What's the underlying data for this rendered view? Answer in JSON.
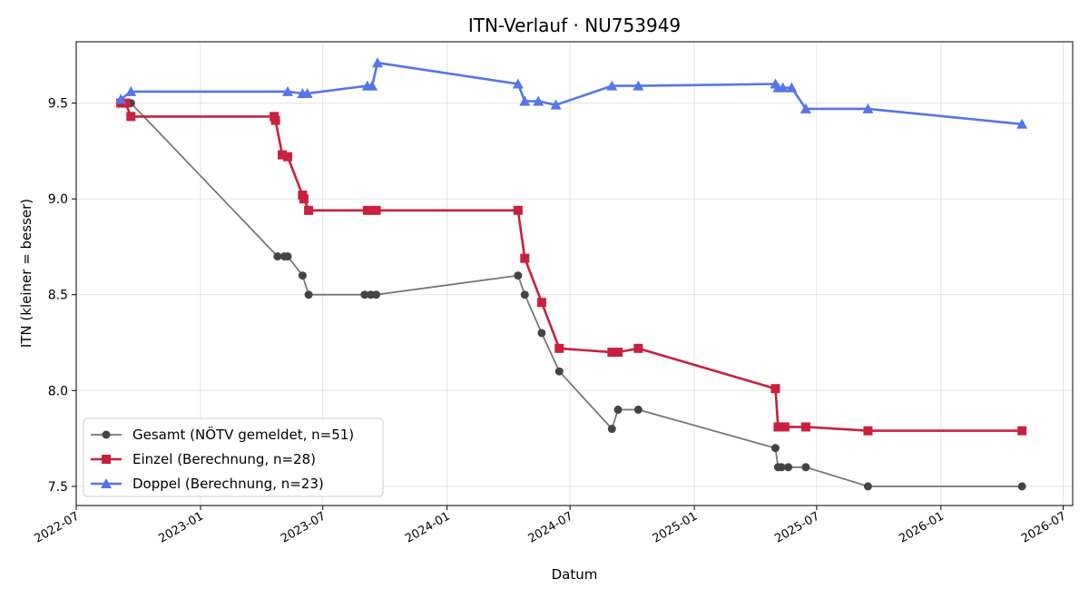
{
  "chart_data": {
    "type": "line",
    "title": "ITN-Verlauf · NU753949",
    "xlabel": "Datum",
    "ylabel": "ITN  (kleiner = besser)",
    "xlim": [
      "2022-07-01",
      "2026-07-15"
    ],
    "ylim": [
      7.4,
      9.82
    ],
    "x_ticks": [
      "2022-07",
      "2023-01",
      "2023-07",
      "2024-01",
      "2024-07",
      "2025-01",
      "2025-07",
      "2026-01",
      "2026-07"
    ],
    "y_ticks": [
      7.5,
      8.0,
      8.5,
      9.0,
      9.5
    ],
    "grid": true,
    "legend_position": "lower-left",
    "series": [
      {
        "name": "Gesamt (NÖTV gemeldet, n=51)",
        "color": "#444444",
        "line_color": "#777777",
        "marker": "circle",
        "points": [
          {
            "x": "2022-09-05",
            "y": 9.5
          },
          {
            "x": "2022-09-20",
            "y": 9.5
          },
          {
            "x": "2023-04-25",
            "y": 8.7
          },
          {
            "x": "2023-05-05",
            "y": 8.7
          },
          {
            "x": "2023-05-10",
            "y": 8.7
          },
          {
            "x": "2023-06-01",
            "y": 8.6
          },
          {
            "x": "2023-06-10",
            "y": 8.5
          },
          {
            "x": "2023-09-01",
            "y": 8.5
          },
          {
            "x": "2023-09-10",
            "y": 8.5
          },
          {
            "x": "2023-09-18",
            "y": 8.5
          },
          {
            "x": "2024-04-15",
            "y": 8.6
          },
          {
            "x": "2024-04-25",
            "y": 8.5
          },
          {
            "x": "2024-05-20",
            "y": 8.3
          },
          {
            "x": "2024-06-15",
            "y": 8.1
          },
          {
            "x": "2024-09-01",
            "y": 7.8
          },
          {
            "x": "2024-09-10",
            "y": 7.9
          },
          {
            "x": "2024-10-10",
            "y": 7.9
          },
          {
            "x": "2025-05-01",
            "y": 7.7
          },
          {
            "x": "2025-05-05",
            "y": 7.6
          },
          {
            "x": "2025-05-10",
            "y": 7.6
          },
          {
            "x": "2025-05-20",
            "y": 7.6
          },
          {
            "x": "2025-06-15",
            "y": 7.6
          },
          {
            "x": "2025-09-15",
            "y": 7.5
          },
          {
            "x": "2026-05-01",
            "y": 7.5
          }
        ]
      },
      {
        "name": "Einzel (Berechnung, n=28)",
        "color": "#c8203e",
        "line_color": "#c8203e",
        "marker": "square",
        "points": [
          {
            "x": "2022-09-05",
            "y": 9.5
          },
          {
            "x": "2022-09-12",
            "y": 9.5
          },
          {
            "x": "2022-09-20",
            "y": 9.43
          },
          {
            "x": "2023-04-20",
            "y": 9.43
          },
          {
            "x": "2023-04-22",
            "y": 9.41
          },
          {
            "x": "2023-05-02",
            "y": 9.23
          },
          {
            "x": "2023-05-10",
            "y": 9.22
          },
          {
            "x": "2023-06-01",
            "y": 9.02
          },
          {
            "x": "2023-06-03",
            "y": 9.0
          },
          {
            "x": "2023-06-10",
            "y": 8.94
          },
          {
            "x": "2023-09-05",
            "y": 8.94
          },
          {
            "x": "2023-09-18",
            "y": 8.94
          },
          {
            "x": "2024-04-15",
            "y": 8.94
          },
          {
            "x": "2024-04-25",
            "y": 8.69
          },
          {
            "x": "2024-05-20",
            "y": 8.46
          },
          {
            "x": "2024-06-15",
            "y": 8.22
          },
          {
            "x": "2024-09-01",
            "y": 8.2
          },
          {
            "x": "2024-09-10",
            "y": 8.2
          },
          {
            "x": "2024-10-10",
            "y": 8.22
          },
          {
            "x": "2025-05-01",
            "y": 8.01
          },
          {
            "x": "2025-05-05",
            "y": 7.81
          },
          {
            "x": "2025-05-15",
            "y": 7.81
          },
          {
            "x": "2025-06-15",
            "y": 7.81
          },
          {
            "x": "2025-09-15",
            "y": 7.79
          },
          {
            "x": "2026-05-01",
            "y": 7.79
          }
        ]
      },
      {
        "name": "Doppel (Berechnung, n=23)",
        "color": "#5575e8",
        "line_color": "#5575e8",
        "marker": "triangle",
        "points": [
          {
            "x": "2022-09-05",
            "y": 9.52
          },
          {
            "x": "2022-09-20",
            "y": 9.56
          },
          {
            "x": "2023-05-10",
            "y": 9.56
          },
          {
            "x": "2023-06-01",
            "y": 9.55
          },
          {
            "x": "2023-06-08",
            "y": 9.55
          },
          {
            "x": "2023-09-05",
            "y": 9.59
          },
          {
            "x": "2023-09-12",
            "y": 9.59
          },
          {
            "x": "2023-09-20",
            "y": 9.71
          },
          {
            "x": "2024-04-15",
            "y": 9.6
          },
          {
            "x": "2024-04-25",
            "y": 9.51
          },
          {
            "x": "2024-05-15",
            "y": 9.51
          },
          {
            "x": "2024-06-10",
            "y": 9.49
          },
          {
            "x": "2024-09-01",
            "y": 9.59
          },
          {
            "x": "2024-10-10",
            "y": 9.59
          },
          {
            "x": "2025-05-01",
            "y": 9.6
          },
          {
            "x": "2025-05-05",
            "y": 9.58
          },
          {
            "x": "2025-05-12",
            "y": 9.58
          },
          {
            "x": "2025-05-25",
            "y": 9.58
          },
          {
            "x": "2025-06-15",
            "y": 9.47
          },
          {
            "x": "2025-09-15",
            "y": 9.47
          },
          {
            "x": "2026-05-01",
            "y": 9.39
          }
        ]
      }
    ]
  }
}
